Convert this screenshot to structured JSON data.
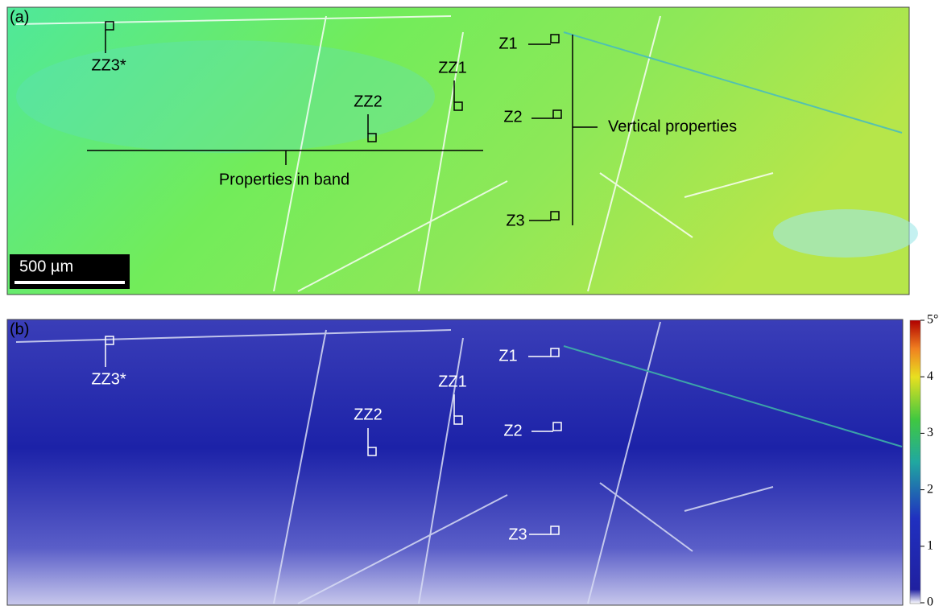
{
  "panels": [
    {
      "label": "(a)",
      "annotations": [
        "ZZ3*",
        "ZZ1",
        "ZZ2",
        "Z1",
        "Z2",
        "Z3"
      ],
      "band_label": "Properties in band",
      "vertical_label": "Vertical properties",
      "scale_bar": "500 µm"
    },
    {
      "label": "(b)",
      "annotations": [
        "ZZ3*",
        "ZZ1",
        "ZZ2",
        "Z1",
        "Z2",
        "Z3"
      ]
    }
  ],
  "colorbar": {
    "ticks": [
      "5°",
      "4",
      "3",
      "2",
      "1",
      "0"
    ]
  }
}
